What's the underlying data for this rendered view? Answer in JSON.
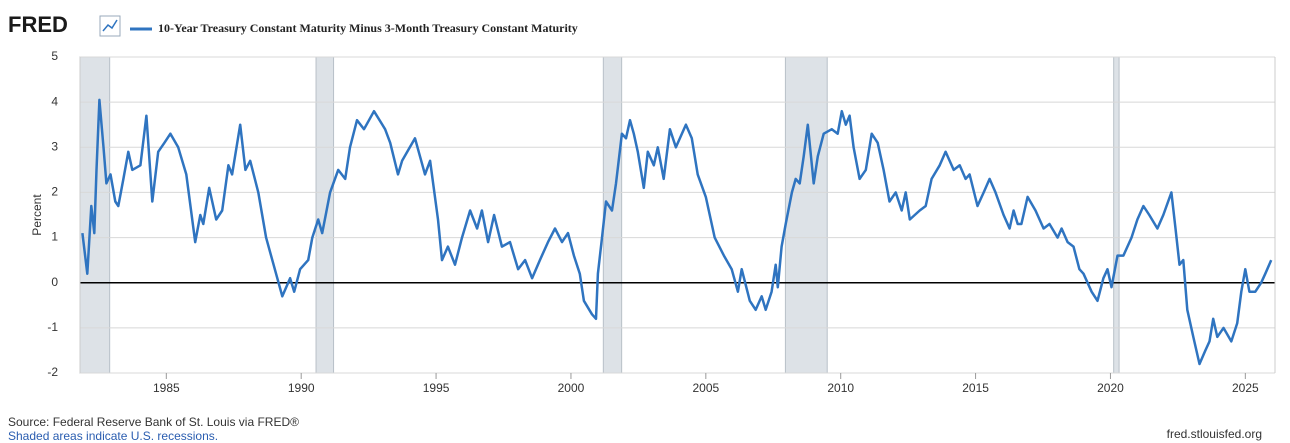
{
  "chart_data": {
    "type": "line",
    "logo": "FRED",
    "title": "10-Year Treasury Constant Maturity Minus 3-Month Treasury Constant Maturity",
    "ylabel": "Percent",
    "source": "Source: Federal Reserve Bank of St. Louis via FRED®",
    "note": "Shaded areas indicate U.S. recessions.",
    "site": "fred.stlouisfed.org",
    "xlim": [
      1981.8,
      2026.1
    ],
    "ylim": [
      -2,
      5
    ],
    "xticks": [
      1985,
      1990,
      1995,
      2000,
      2005,
      2010,
      2015,
      2020,
      2025
    ],
    "yticks": [
      -2,
      -1,
      0,
      1,
      2,
      3,
      4,
      5
    ],
    "grid": true,
    "recessions": [
      [
        1981.8,
        1982.9
      ],
      [
        1990.55,
        1991.2
      ],
      [
        2001.2,
        2001.88
      ],
      [
        2007.95,
        2009.5
      ],
      [
        2020.12,
        2020.32
      ]
    ],
    "recession_color": "#dde2e7",
    "x": [
      1981.89,
      1982.07,
      1982.22,
      1982.33,
      1982.41,
      1982.52,
      1982.67,
      1982.78,
      1982.93,
      1983.11,
      1983.22,
      1983.41,
      1983.59,
      1983.74,
      1984.04,
      1984.26,
      1984.48,
      1984.7,
      1984.93,
      1985.15,
      1985.44,
      1985.74,
      1986.07,
      1986.26,
      1986.37,
      1986.59,
      1986.85,
      1987.07,
      1987.3,
      1987.44,
      1987.74,
      1987.93,
      1988.11,
      1988.41,
      1988.7,
      1988.93,
      1989.3,
      1989.59,
      1989.74,
      1989.96,
      1990.26,
      1990.41,
      1990.63,
      1990.78,
      1991.07,
      1991.37,
      1991.63,
      1991.81,
      1992.07,
      1992.33,
      1992.7,
      1993.11,
      1993.3,
      1993.59,
      1993.74,
      1994.22,
      1994.59,
      1994.78,
      1995.07,
      1995.22,
      1995.44,
      1995.7,
      1995.96,
      1996.26,
      1996.52,
      1996.7,
      1996.93,
      1997.15,
      1997.44,
      1997.74,
      1998.04,
      1998.3,
      1998.56,
      1998.85,
      1999.15,
      1999.41,
      1999.67,
      1999.89,
      2000.11,
      2000.33,
      2000.48,
      2000.78,
      2000.93,
      2001.0,
      2001.15,
      2001.3,
      2001.52,
      2001.67,
      2001.89,
      2002.04,
      2002.19,
      2002.33,
      2002.48,
      2002.7,
      2002.85,
      2003.07,
      2003.22,
      2003.44,
      2003.67,
      2003.89,
      2004.26,
      2004.48,
      2004.7,
      2005.0,
      2005.33,
      2005.67,
      2005.96,
      2006.19,
      2006.33,
      2006.63,
      2006.85,
      2007.07,
      2007.22,
      2007.44,
      2007.59,
      2007.67,
      2007.81,
      2007.96,
      2008.19,
      2008.33,
      2008.48,
      2008.63,
      2008.78,
      2009.0,
      2009.15,
      2009.37,
      2009.67,
      2009.89,
      2010.04,
      2010.19,
      2010.33,
      2010.48,
      2010.7,
      2010.93,
      2011.15,
      2011.37,
      2011.59,
      2011.81,
      2012.04,
      2012.26,
      2012.41,
      2012.56,
      2012.93,
      2013.15,
      2013.37,
      2013.67,
      2013.89,
      2014.19,
      2014.41,
      2014.63,
      2014.78,
      2015.07,
      2015.3,
      2015.52,
      2015.74,
      2016.04,
      2016.26,
      2016.41,
      2016.56,
      2016.7,
      2016.93,
      2017.22,
      2017.52,
      2017.74,
      2018.04,
      2018.19,
      2018.41,
      2018.63,
      2018.85,
      2019.0,
      2019.3,
      2019.52,
      2019.74,
      2019.89,
      2020.04,
      2020.26,
      2020.48,
      2020.78,
      2021.0,
      2021.22,
      2021.44,
      2021.74,
      2021.96,
      2022.26,
      2022.41,
      2022.56,
      2022.7,
      2022.85,
      2023.07,
      2023.3,
      2023.52,
      2023.67,
      2023.81,
      2023.96,
      2024.19,
      2024.48,
      2024.7,
      2024.85,
      2025.0,
      2025.15,
      2025.37,
      2025.59,
      2025.74,
      2025.96
    ],
    "series": [
      {
        "name": "10-Year Treasury Constant Maturity Minus 3-Month Treasury Constant Maturity",
        "color": "#2f74c0",
        "values": [
          1.1,
          0.2,
          1.7,
          1.1,
          2.5,
          4.05,
          3.0,
          2.2,
          2.4,
          1.8,
          1.7,
          2.3,
          2.9,
          2.5,
          2.6,
          3.7,
          1.8,
          2.9,
          3.1,
          3.3,
          3.0,
          2.4,
          0.9,
          1.5,
          1.3,
          2.1,
          1.4,
          1.6,
          2.6,
          2.4,
          3.5,
          2.5,
          2.7,
          2.0,
          1.0,
          0.5,
          -0.3,
          0.1,
          -0.2,
          0.3,
          0.5,
          1.0,
          1.4,
          1.1,
          2.0,
          2.5,
          2.3,
          3.0,
          3.6,
          3.4,
          3.8,
          3.4,
          3.1,
          2.4,
          2.7,
          3.2,
          2.4,
          2.7,
          1.4,
          0.5,
          0.8,
          0.4,
          1.0,
          1.6,
          1.2,
          1.6,
          0.9,
          1.5,
          0.8,
          0.9,
          0.3,
          0.5,
          0.1,
          0.5,
          0.9,
          1.2,
          0.9,
          1.1,
          0.6,
          0.2,
          -0.4,
          -0.7,
          -0.8,
          0.2,
          1.0,
          1.8,
          1.6,
          2.2,
          3.3,
          3.2,
          3.6,
          3.3,
          2.9,
          2.1,
          2.9,
          2.6,
          3.0,
          2.3,
          3.4,
          3.0,
          3.5,
          3.2,
          2.4,
          1.9,
          1.0,
          0.6,
          0.3,
          -0.2,
          0.3,
          -0.4,
          -0.6,
          -0.3,
          -0.6,
          -0.2,
          0.4,
          -0.1,
          0.8,
          1.3,
          2.0,
          2.3,
          2.2,
          2.8,
          3.5,
          2.2,
          2.8,
          3.3,
          3.4,
          3.3,
          3.8,
          3.5,
          3.7,
          3.0,
          2.3,
          2.5,
          3.3,
          3.1,
          2.5,
          1.8,
          2.0,
          1.6,
          2.0,
          1.4,
          1.6,
          1.7,
          2.3,
          2.6,
          2.9,
          2.5,
          2.6,
          2.3,
          2.4,
          1.7,
          2.0,
          2.3,
          2.0,
          1.5,
          1.2,
          1.6,
          1.3,
          1.3,
          1.9,
          1.6,
          1.2,
          1.3,
          1.0,
          1.2,
          0.9,
          0.8,
          0.3,
          0.2,
          -0.2,
          -0.4,
          0.1,
          0.3,
          -0.1,
          0.6,
          0.6,
          1.0,
          1.4,
          1.7,
          1.5,
          1.2,
          1.5,
          2.0,
          1.2,
          0.4,
          0.5,
          -0.6,
          -1.2,
          -1.8,
          -1.5,
          -1.3,
          -0.8,
          -1.2,
          -1.0,
          -1.3,
          -0.9,
          -0.2,
          0.3,
          -0.2,
          -0.2,
          0.0,
          0.2,
          0.5
        ]
      }
    ]
  }
}
